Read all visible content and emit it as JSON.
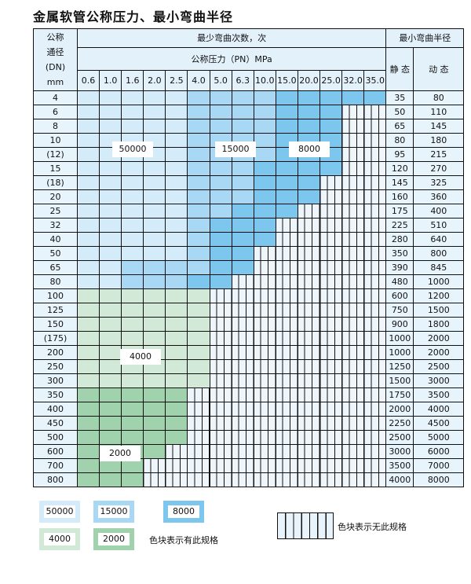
{
  "title": "金属软管公称压力、最小弯曲半径",
  "header": {
    "dn": [
      "公称",
      "通径",
      "(DN)",
      "mm"
    ],
    "cycles": "最少弯曲次数，次",
    "pressure": "公称压力（PN）MPa",
    "radius": "最小弯曲半径",
    "static": "静 态",
    "dynamic": "动 态",
    "pressures": [
      "0.6",
      "1.0",
      "1.6",
      "2.0",
      "2.5",
      "4.0",
      "5.0",
      "6.3",
      "10.0",
      "15.0",
      "20.0",
      "25.0",
      "32.0",
      "35.0"
    ]
  },
  "colors": {
    "L": "#d4ebf9",
    "M": "#a8d8f3",
    "D": "#7dc7ee",
    "G": "#d3e9d7",
    "H": "#a0d2ae"
  },
  "rows": [
    {
      "dn": "4",
      "static": "35",
      "dynamic": "80",
      "fill": "LLLLLMMMMDDDDD"
    },
    {
      "dn": "6",
      "static": "50",
      "dynamic": "110",
      "fill": "LLLLLMMMMDDD"
    },
    {
      "dn": "8",
      "static": "65",
      "dynamic": "145",
      "fill": "LLLLLMMMMDDD"
    },
    {
      "dn": "10",
      "static": "80",
      "dynamic": "180",
      "fill": "LLLLLMMMMDDD"
    },
    {
      "dn": "(12)",
      "static": "95",
      "dynamic": "215",
      "fill": "LLLLLMMMMDDD"
    },
    {
      "dn": "15",
      "static": "120",
      "dynamic": "270",
      "fill": "LLLLLMMMDDDD"
    },
    {
      "dn": "(18)",
      "static": "145",
      "dynamic": "325",
      "fill": "LLLLLMMMDDD"
    },
    {
      "dn": "20",
      "static": "160",
      "dynamic": "360",
      "fill": "LLLLLMMMDDD"
    },
    {
      "dn": "25",
      "static": "175",
      "dynamic": "400",
      "fill": "LLLLLMMDDD"
    },
    {
      "dn": "32",
      "static": "225",
      "dynamic": "510",
      "fill": "LLLLLMDDD"
    },
    {
      "dn": "40",
      "static": "280",
      "dynamic": "640",
      "fill": "LLLLLMDDD"
    },
    {
      "dn": "50",
      "static": "350",
      "dynamic": "800",
      "fill": "LLLLLMDD"
    },
    {
      "dn": "65",
      "static": "390",
      "dynamic": "845",
      "fill": "LLMMMMDD"
    },
    {
      "dn": "80",
      "static": "480",
      "dynamic": "1000",
      "fill": "LLMMMDD"
    },
    {
      "dn": "100",
      "static": "600",
      "dynamic": "1200",
      "fill": "GGGGGG"
    },
    {
      "dn": "125",
      "static": "750",
      "dynamic": "1500",
      "fill": "GGGGGG"
    },
    {
      "dn": "150",
      "static": "900",
      "dynamic": "1800",
      "fill": "GGGGGG"
    },
    {
      "dn": "(175)",
      "static": "1000",
      "dynamic": "2000",
      "fill": "GGGGGG"
    },
    {
      "dn": "200",
      "static": "1000",
      "dynamic": "2000",
      "fill": "GGGGGG"
    },
    {
      "dn": "250",
      "static": "1250",
      "dynamic": "2500",
      "fill": "GGGGGG"
    },
    {
      "dn": "300",
      "static": "1500",
      "dynamic": "3000",
      "fill": "GGGGGG"
    },
    {
      "dn": "350",
      "static": "1750",
      "dynamic": "3500",
      "fill": "HHHHH"
    },
    {
      "dn": "400",
      "static": "2000",
      "dynamic": "4000",
      "fill": "HHHHH"
    },
    {
      "dn": "450",
      "static": "2250",
      "dynamic": "4500",
      "fill": "HHHHH"
    },
    {
      "dn": "500",
      "static": "2500",
      "dynamic": "5000",
      "fill": "HHHHH"
    },
    {
      "dn": "600",
      "static": "3000",
      "dynamic": "6000",
      "fill": "HHHH"
    },
    {
      "dn": "700",
      "static": "3500",
      "dynamic": "7000",
      "fill": "HHH"
    },
    {
      "dn": "800",
      "static": "4000",
      "dynamic": "8000",
      "fill": "HHH"
    }
  ],
  "zone_labels": {
    "L": "50000",
    "M": "15000",
    "D": "8000",
    "G": "4000",
    "H": "2000"
  },
  "legend": {
    "has_spec": "色块表示有此规格",
    "no_spec": "色块表示无此规格"
  }
}
